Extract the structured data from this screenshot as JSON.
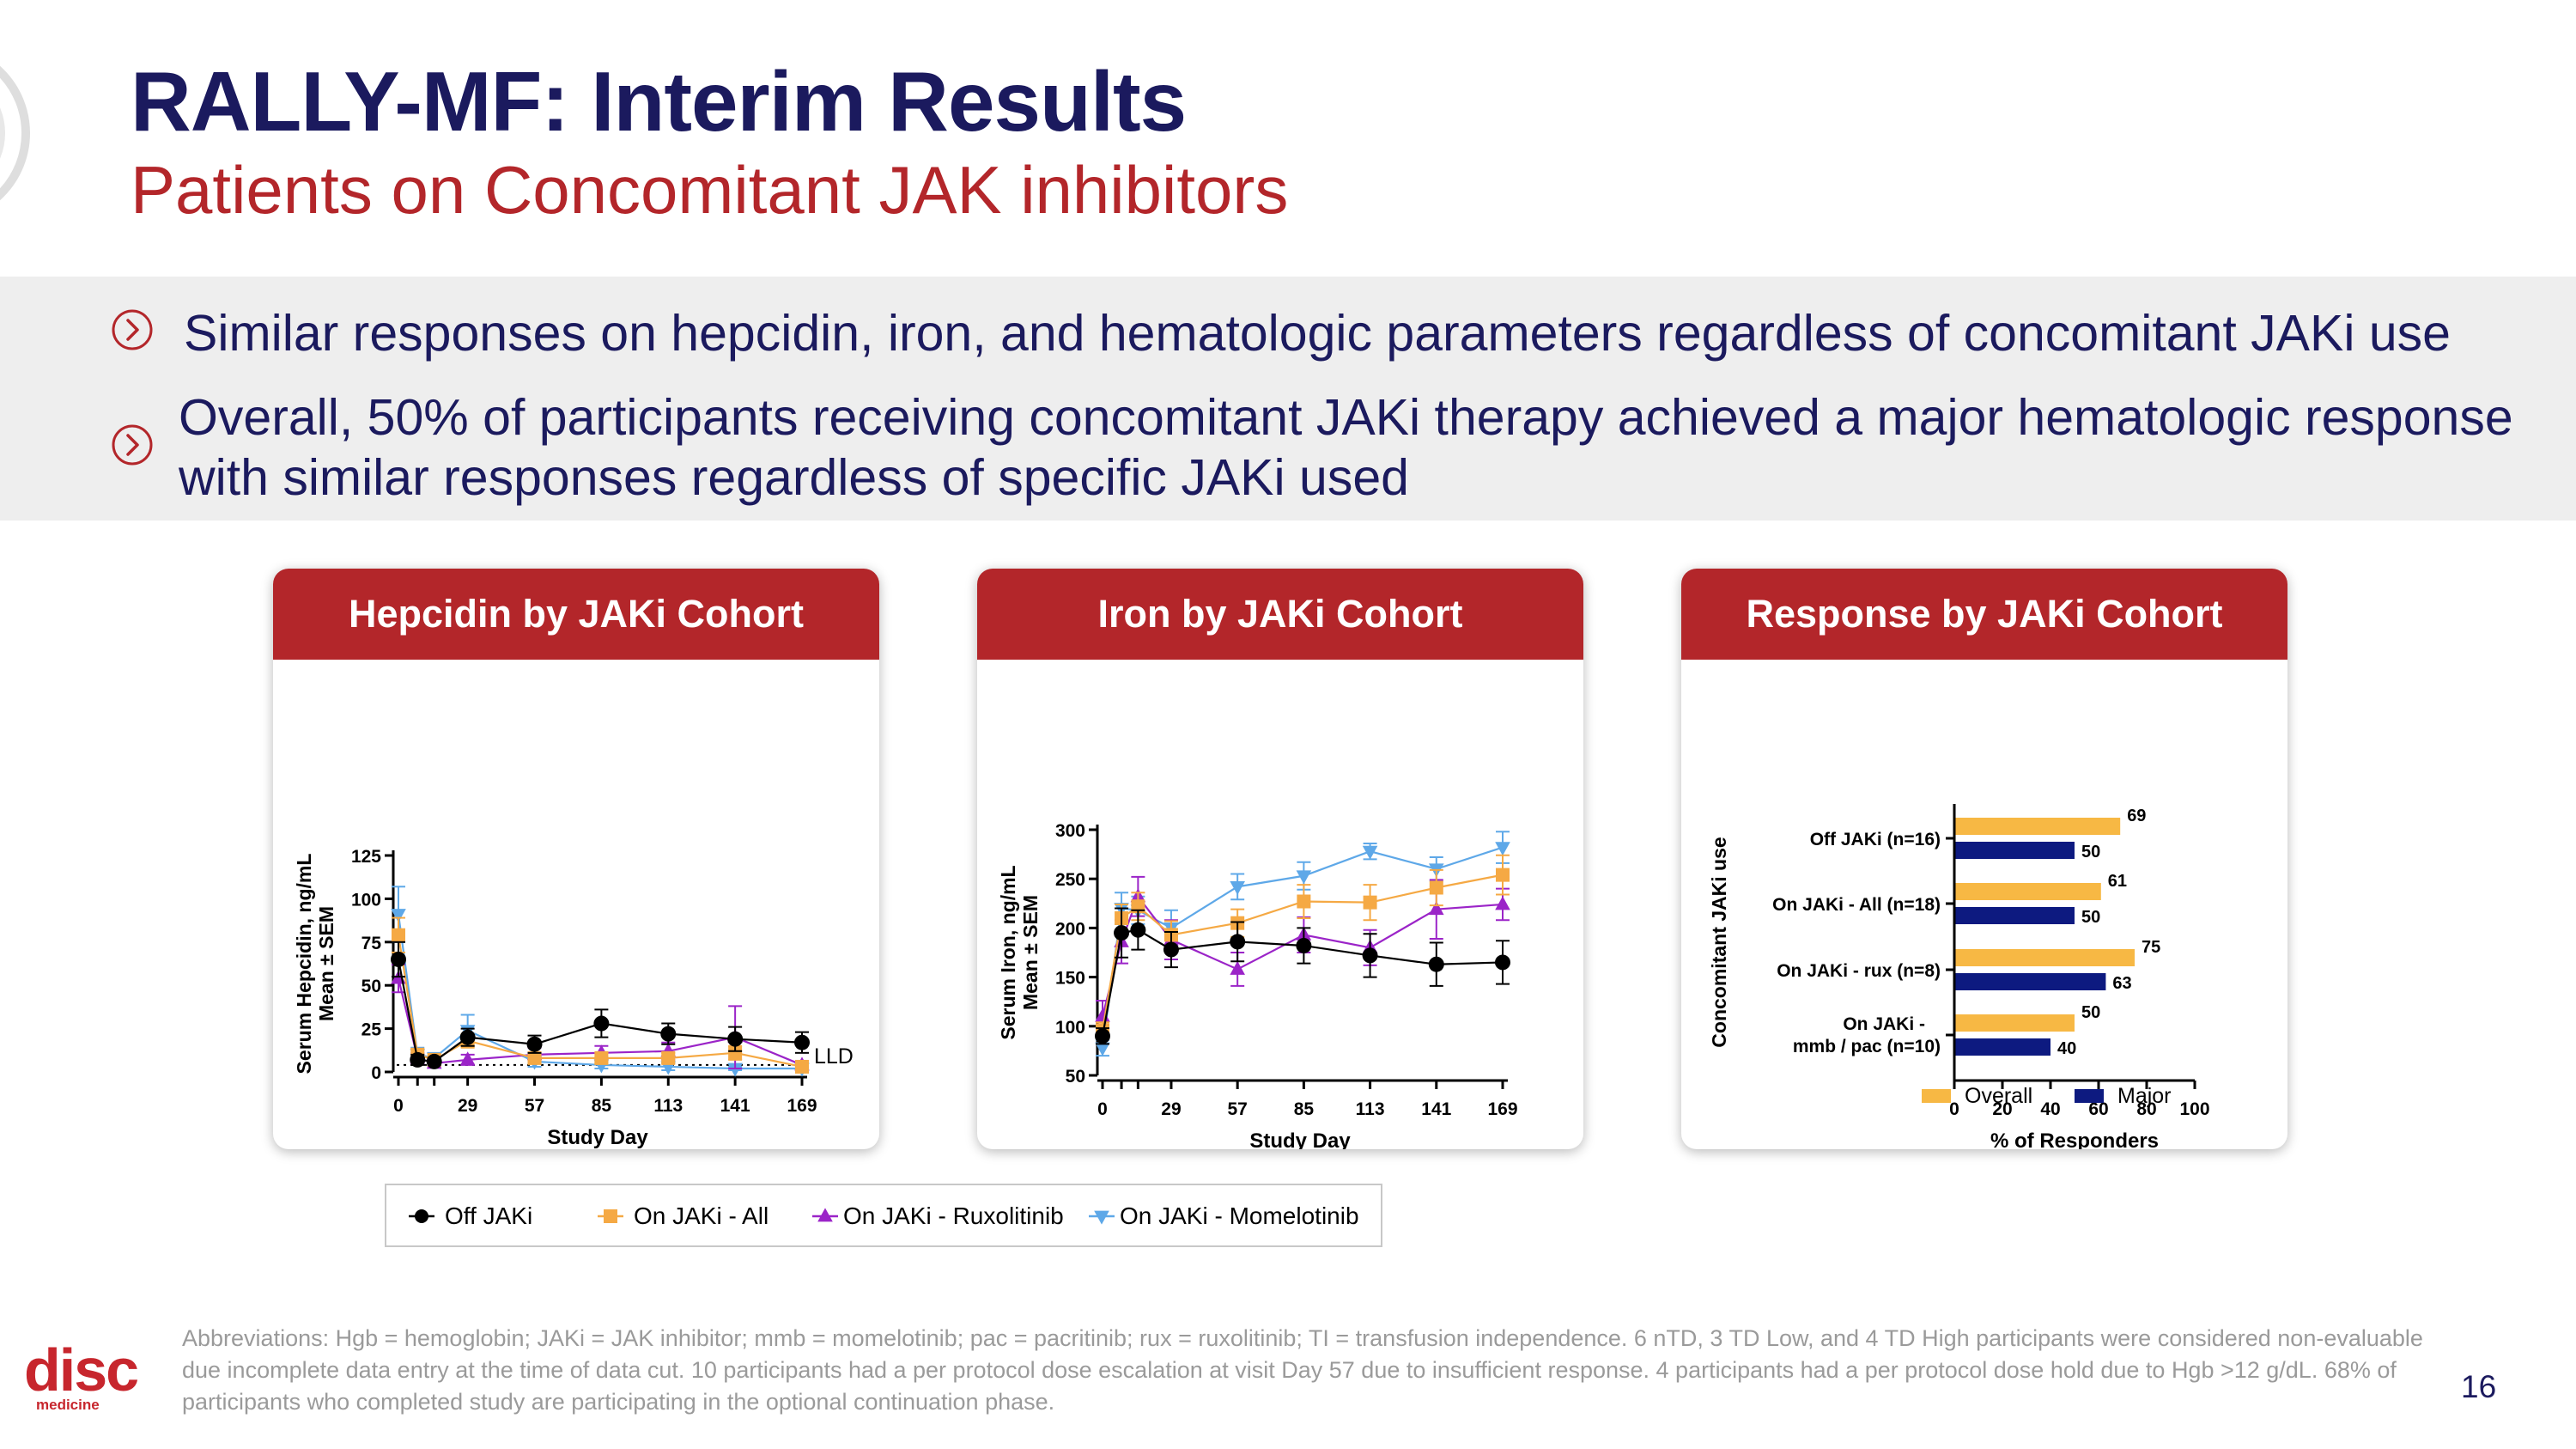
{
  "header": {
    "title": "RALLY-MF: Interim Results",
    "subtitle": "Patients on Concomitant JAK inhibitors"
  },
  "bullets": [
    {
      "line1": "Similar responses on hepcidin, iron, and hematologic parameters regardless of concomitant JAKi use"
    },
    {
      "line1": "Overall, 50% of participants receiving concomitant JAKi therapy achieved a major hematologic response",
      "line2": "with similar responses regardless of specific JAKi used"
    }
  ],
  "colors": {
    "navy": "#1b1a5e",
    "red": "#b3262a",
    "black": "#000000",
    "orange": "#f5a944",
    "purple": "#9b24c8",
    "blue": "#5ea8e8",
    "overall": "#f7b844",
    "major": "#0d1a80"
  },
  "cards": {
    "hepcidin_title": "Hepcidin by JAKi Cohort",
    "iron_title": "Iron by JAKi Cohort",
    "response_title": "Response by JAKi Cohort"
  },
  "chart_data": [
    {
      "type": "line",
      "title": "Hepcidin by JAKi Cohort",
      "xlabel": "Study Day",
      "ylabel": "Serum Hepcidin, ng/mL\nMean ± SEM",
      "xlim": [
        0,
        169
      ],
      "ylim": [
        0,
        125
      ],
      "xticks": [
        0,
        29,
        57,
        85,
        113,
        141,
        169
      ],
      "yticks": [
        0,
        25,
        50,
        75,
        100,
        125
      ],
      "annotation": "LLD",
      "lld": 4,
      "series": [
        {
          "name": "Off JAKi",
          "color": "#000000",
          "marker": "circle",
          "x": [
            0,
            8,
            15,
            29,
            57,
            85,
            113,
            141,
            169
          ],
          "y": [
            65,
            7,
            6,
            20,
            16,
            28,
            22,
            19,
            17
          ],
          "err": [
            10,
            3,
            2,
            5,
            5,
            8,
            6,
            7,
            6
          ]
        },
        {
          "name": "On JAKi - All",
          "color": "#f5a944",
          "marker": "square",
          "x": [
            0,
            8,
            15,
            29,
            57,
            85,
            113,
            141,
            169
          ],
          "y": [
            79,
            10,
            7,
            18,
            8,
            8,
            8,
            11,
            3
          ],
          "err": [
            10,
            3,
            2,
            4,
            3,
            3,
            3,
            4,
            2
          ]
        },
        {
          "name": "On JAKi - Ruxolitinib",
          "color": "#9b24c8",
          "marker": "triangle-up",
          "x": [
            0,
            8,
            15,
            29,
            57,
            85,
            113,
            141,
            169
          ],
          "y": [
            54,
            8,
            5,
            7,
            10,
            11,
            12,
            20,
            4
          ],
          "err": [
            8,
            3,
            2,
            3,
            4,
            4,
            5,
            18,
            2
          ]
        },
        {
          "name": "On JAKi - Momelotinib",
          "color": "#5ea8e8",
          "marker": "triangle-down",
          "x": [
            0,
            8,
            15,
            29,
            57,
            85,
            113,
            141,
            169
          ],
          "y": [
            91,
            10,
            8,
            24,
            6,
            4,
            3,
            2,
            2
          ],
          "err": [
            16,
            4,
            3,
            9,
            3,
            2,
            2,
            1,
            1
          ]
        }
      ]
    },
    {
      "type": "line",
      "title": "Iron by JAKi Cohort",
      "xlabel": "Study Day",
      "ylabel": "Serum Iron, ng/mL\nMean ± SEM",
      "xlim": [
        0,
        169
      ],
      "ylim": [
        50,
        300
      ],
      "xticks": [
        0,
        29,
        57,
        85,
        113,
        141,
        169
      ],
      "yticks": [
        50,
        100,
        150,
        200,
        250,
        300
      ],
      "series": [
        {
          "name": "Off JAKi",
          "color": "#000000",
          "marker": "circle",
          "x": [
            0,
            8,
            15,
            29,
            57,
            85,
            113,
            141,
            169
          ],
          "y": [
            90,
            195,
            198,
            178,
            186,
            182,
            172,
            163,
            165
          ],
          "err": [
            8,
            25,
            20,
            18,
            20,
            18,
            22,
            22,
            22
          ]
        },
        {
          "name": "On JAKi - All",
          "color": "#f5a944",
          "marker": "square",
          "x": [
            0,
            8,
            15,
            29,
            57,
            85,
            113,
            141,
            169
          ],
          "y": [
            96,
            210,
            222,
            193,
            205,
            227,
            226,
            241,
            254
          ],
          "err": [
            8,
            14,
            14,
            14,
            14,
            17,
            18,
            18,
            20
          ]
        },
        {
          "name": "On JAKi - Ruxolitinib",
          "color": "#9b24c8",
          "marker": "triangle-up",
          "x": [
            0,
            8,
            15,
            29,
            57,
            85,
            113,
            141,
            169
          ],
          "y": [
            110,
            186,
            232,
            188,
            158,
            193,
            180,
            219,
            224
          ],
          "err": [
            16,
            22,
            20,
            20,
            17,
            18,
            18,
            30,
            16
          ]
        },
        {
          "name": "On JAKi - Momelotinib",
          "color": "#5ea8e8",
          "marker": "triangle-down",
          "x": [
            0,
            8,
            15,
            29,
            57,
            85,
            113,
            141,
            169
          ],
          "y": [
            78,
            220,
            218,
            200,
            242,
            253,
            278,
            260,
            282
          ],
          "err": [
            8,
            16,
            14,
            18,
            13,
            14,
            8,
            12,
            16
          ]
        }
      ]
    },
    {
      "type": "bar",
      "orientation": "horizontal",
      "title": "Response by JAKi Cohort",
      "xlabel": "% of Responders",
      "ylabel": "Concomitant JAKi use",
      "xlim": [
        0,
        100
      ],
      "xticks": [
        0,
        20,
        40,
        60,
        80,
        100
      ],
      "categories": [
        [
          "Off JAKi (n=16)"
        ],
        [
          "On JAKi - All (n=18)"
        ],
        [
          "On JAKi - rux (n=8)"
        ],
        [
          "On JAKi -",
          "mmb / pac (n=10)"
        ]
      ],
      "series": [
        {
          "name": "Overall",
          "color": "#f7b844",
          "values": [
            69,
            61,
            75,
            50
          ]
        },
        {
          "name": "Major",
          "color": "#0d1a80",
          "values": [
            50,
            50,
            63,
            40
          ]
        }
      ]
    }
  ],
  "legend": [
    {
      "label": "Off JAKi",
      "color": "#000000",
      "marker": "circle"
    },
    {
      "label": "On JAKi - All",
      "color": "#f5a944",
      "marker": "square"
    },
    {
      "label": "On JAKi - Ruxolitinib",
      "color": "#9b24c8",
      "marker": "triangle-up"
    },
    {
      "label": "On JAKi - Momelotinib",
      "color": "#5ea8e8",
      "marker": "triangle-down"
    }
  ],
  "footer": {
    "abbrev": "Abbreviations: Hgb = hemoglobin; JAKi = JAK inhibitor; mmb = momelotinib; pac = pacritinib; rux = ruxolitinib; TI = transfusion independence. 6 nTD, 3 TD Low, and 4 TD High participants were considered non-evaluable due incomplete data entry at the time of data cut. 10 participants had a per protocol dose escalation at visit Day 57 due to insufficient response. 4 participants had a per protocol dose hold due to Hgb >12 g/dL. 68% of participants who completed study are participating in the optional continuation phase.",
    "page": "16",
    "logo_word": "disc",
    "logo_sub": "medicine"
  }
}
